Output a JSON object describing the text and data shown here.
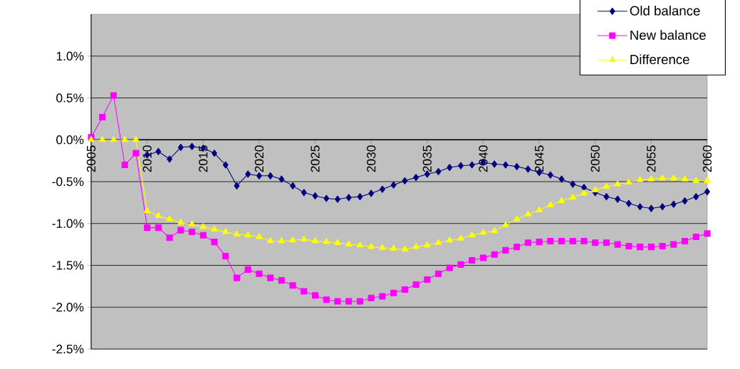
{
  "chart_data": {
    "type": "line",
    "x": [
      2005,
      2006,
      2007,
      2008,
      2009,
      2010,
      2011,
      2012,
      2013,
      2014,
      2015,
      2016,
      2017,
      2018,
      2019,
      2020,
      2021,
      2022,
      2023,
      2024,
      2025,
      2026,
      2027,
      2028,
      2029,
      2030,
      2031,
      2032,
      2033,
      2034,
      2035,
      2036,
      2037,
      2038,
      2039,
      2040,
      2041,
      2042,
      2043,
      2044,
      2045,
      2046,
      2047,
      2048,
      2049,
      2050,
      2051,
      2052,
      2053,
      2054,
      2055,
      2056,
      2057,
      2058,
      2059,
      2060
    ],
    "series": [
      {
        "name": "Old balance",
        "color": "#000080",
        "marker": "diamond",
        "values": [
          null,
          null,
          null,
          null,
          null,
          -0.18,
          -0.14,
          -0.23,
          -0.09,
          -0.08,
          -0.1,
          -0.16,
          -0.3,
          -0.55,
          -0.41,
          -0.43,
          -0.43,
          -0.47,
          -0.55,
          -0.63,
          -0.67,
          -0.7,
          -0.71,
          -0.69,
          -0.68,
          -0.64,
          -0.59,
          -0.54,
          -0.49,
          -0.45,
          -0.41,
          -0.38,
          -0.33,
          -0.31,
          -0.3,
          -0.27,
          -0.29,
          -0.3,
          -0.32,
          -0.35,
          -0.39,
          -0.42,
          -0.47,
          -0.53,
          -0.57,
          -0.63,
          -0.68,
          -0.71,
          -0.76,
          -0.8,
          -0.82,
          -0.8,
          -0.77,
          -0.73,
          -0.68,
          -0.62
        ]
      },
      {
        "name": "New balance",
        "color": "#ff00ff",
        "marker": "square",
        "values": [
          0.03,
          0.27,
          0.53,
          -0.3,
          -0.16,
          -1.05,
          -1.05,
          -1.17,
          -1.08,
          -1.1,
          -1.14,
          -1.22,
          -1.39,
          -1.65,
          -1.55,
          -1.6,
          -1.65,
          -1.68,
          -1.74,
          -1.81,
          -1.86,
          -1.91,
          -1.93,
          -1.93,
          -1.93,
          -1.89,
          -1.87,
          -1.83,
          -1.79,
          -1.73,
          -1.67,
          -1.6,
          -1.53,
          -1.49,
          -1.44,
          -1.41,
          -1.37,
          -1.32,
          -1.28,
          -1.23,
          -1.22,
          -1.21,
          -1.21,
          -1.21,
          -1.21,
          -1.23,
          -1.23,
          -1.25,
          -1.27,
          -1.28,
          -1.28,
          -1.27,
          -1.25,
          -1.21,
          -1.16,
          -1.12
        ]
      },
      {
        "name": "Difference",
        "color": "#ffff00",
        "marker": "triangle",
        "values": [
          0,
          0,
          0,
          0,
          0,
          -0.85,
          -0.91,
          -0.95,
          -0.99,
          -1.01,
          -1.04,
          -1.07,
          -1.1,
          -1.13,
          -1.14,
          -1.16,
          -1.21,
          -1.21,
          -1.2,
          -1.19,
          -1.21,
          -1.22,
          -1.23,
          -1.25,
          -1.26,
          -1.28,
          -1.29,
          -1.3,
          -1.31,
          -1.28,
          -1.26,
          -1.23,
          -1.2,
          -1.18,
          -1.14,
          -1.11,
          -1.09,
          -1.02,
          -0.95,
          -0.89,
          -0.84,
          -0.78,
          -0.73,
          -0.69,
          -0.64,
          -0.6,
          -0.56,
          -0.53,
          -0.51,
          -0.48,
          -0.47,
          -0.46,
          -0.46,
          -0.47,
          -0.49,
          -0.49
        ]
      }
    ],
    "xlim": [
      2005,
      2060
    ],
    "xticks": [
      2005,
      2010,
      2015,
      2020,
      2025,
      2030,
      2035,
      2040,
      2045,
      2050,
      2055,
      2060
    ],
    "ylim": [
      -2.5,
      1.5
    ],
    "yticks": [
      {
        "value": -2.5,
        "label": "-2.5%"
      },
      {
        "value": -2.0,
        "label": "-2.0%"
      },
      {
        "value": -1.5,
        "label": "-1.5%"
      },
      {
        "value": -1.0,
        "label": "-1.0%"
      },
      {
        "value": -0.5,
        "label": "-0.5%"
      },
      {
        "value": 0.0,
        "label": "0.0%"
      },
      {
        "value": 0.5,
        "label": "0.5%"
      },
      {
        "value": 1.0,
        "label": "1.0%"
      }
    ],
    "grid": "y",
    "legend": "top right",
    "line_style": "solid"
  }
}
